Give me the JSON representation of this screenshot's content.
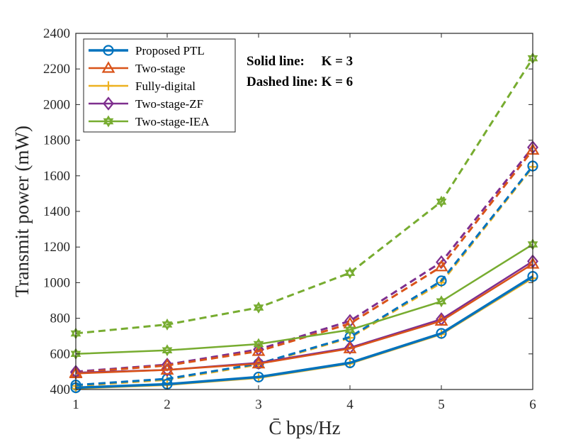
{
  "chart_data": {
    "type": "line",
    "x": [
      1,
      2,
      3,
      4,
      5,
      6
    ],
    "xlim": [
      1,
      6
    ],
    "ylim": [
      400,
      2400
    ],
    "xticks": [
      "1",
      "2",
      "3",
      "4",
      "5",
      "6"
    ],
    "yticks": [
      "400",
      "600",
      "800",
      "1000",
      "1200",
      "1400",
      "1600",
      "1800",
      "2000",
      "2200",
      "2400"
    ],
    "xlabel": "C̄ bps/Hz",
    "ylabel": "Transmit power (mW)",
    "notes": [
      "Solid line:     K = 3",
      "Dashed line: K = 6"
    ],
    "legend_position": "top-left",
    "series": [
      {
        "name": "Proposed PTL",
        "color": "#0072BD",
        "marker": "circle",
        "linewidth": 3.5,
        "k3": [
          410,
          430,
          470,
          550,
          715,
          1035
        ],
        "k6": [
          425,
          460,
          545,
          695,
          1010,
          1655
        ]
      },
      {
        "name": "Two-stage",
        "color": "#D95319",
        "marker": "triangle",
        "linewidth": 2.5,
        "k3": [
          490,
          510,
          545,
          630,
          785,
          1105
        ],
        "k6": [
          495,
          535,
          615,
          770,
          1090,
          1745
        ]
      },
      {
        "name": "Fully-digital",
        "color": "#EDB120",
        "marker": "plus",
        "linewidth": 2.5,
        "k3": [
          405,
          425,
          465,
          545,
          710,
          1025
        ],
        "k6": [
          420,
          455,
          540,
          690,
          1000,
          1650
        ]
      },
      {
        "name": "Two-stage-ZF",
        "color": "#7E2F8E",
        "marker": "diamond",
        "linewidth": 2.5,
        "k3": [
          495,
          510,
          550,
          635,
          795,
          1120
        ],
        "k6": [
          500,
          540,
          625,
          785,
          1115,
          1760
        ]
      },
      {
        "name": "Two-stage-IEA",
        "color": "#77AC30",
        "marker": "hexagram",
        "linewidth": 2.5,
        "k3": [
          600,
          620,
          655,
          735,
          895,
          1215
        ],
        "k6": [
          715,
          765,
          860,
          1055,
          1455,
          2260
        ]
      }
    ]
  }
}
